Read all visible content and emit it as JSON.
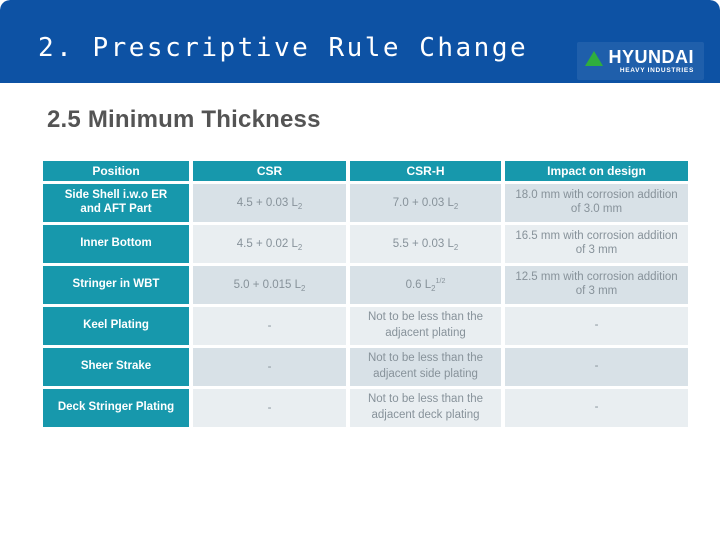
{
  "header": {
    "title": "2. Prescriptive Rule Change",
    "logo": {
      "brand": "HYUNDAI",
      "subtext": "HEAVY INDUSTRIES"
    }
  },
  "section": {
    "heading": "2.5 Minimum Thickness"
  },
  "table": {
    "columns": [
      "Position",
      "CSR",
      "CSR-H",
      "Impact on design"
    ],
    "rows": [
      {
        "position": "Side Shell i.w.o ER and AFT Part",
        "csr": {
          "base": "4.5 + 0.03 L",
          "sub": "2",
          "sup": ""
        },
        "csrh": {
          "base": "7.0 + 0.03 L",
          "sub": "2",
          "sup": ""
        },
        "impact": "18.0 mm with corrosion addition of 3.0 mm"
      },
      {
        "position": "Inner Bottom",
        "csr": {
          "base": "4.5 + 0.02 L",
          "sub": "2",
          "sup": ""
        },
        "csrh": {
          "base": "5.5 + 0.03 L",
          "sub": "2",
          "sup": ""
        },
        "impact": "16.5 mm with corrosion addition of 3 mm"
      },
      {
        "position": "Stringer in WBT",
        "csr": {
          "base": "5.0 + 0.015 L",
          "sub": "2",
          "sup": ""
        },
        "csrh": {
          "base": "0.6 L",
          "sub": "2",
          "sup": "1/2"
        },
        "impact": "12.5 mm with corrosion addition of 3 mm"
      },
      {
        "position": "Keel Plating",
        "csr": {
          "base": "-",
          "sub": "",
          "sup": ""
        },
        "csrh": {
          "base": "Not to be less than the adjacent plating",
          "sub": "",
          "sup": ""
        },
        "impact": "-"
      },
      {
        "position": "Sheer Strake",
        "csr": {
          "base": "-",
          "sub": "",
          "sup": ""
        },
        "csrh": {
          "base": "Not to be less than the adjacent side plating",
          "sub": "",
          "sup": ""
        },
        "impact": "-"
      },
      {
        "position": "Deck Stringer Plating",
        "csr": {
          "base": "-",
          "sub": "",
          "sup": ""
        },
        "csrh": {
          "base": "Not to be less than the adjacent deck plating",
          "sub": "",
          "sup": ""
        },
        "impact": "-"
      }
    ]
  },
  "colors": {
    "band_blue": "#0d52a4",
    "table_teal": "#1798ac",
    "row_dark": "#d8e1e7",
    "row_light": "#e9eef1",
    "data_text_gray": "#87929a",
    "heading_gray": "#545454",
    "logo_green": "#2fae3e",
    "title_white": "#ffffff"
  }
}
